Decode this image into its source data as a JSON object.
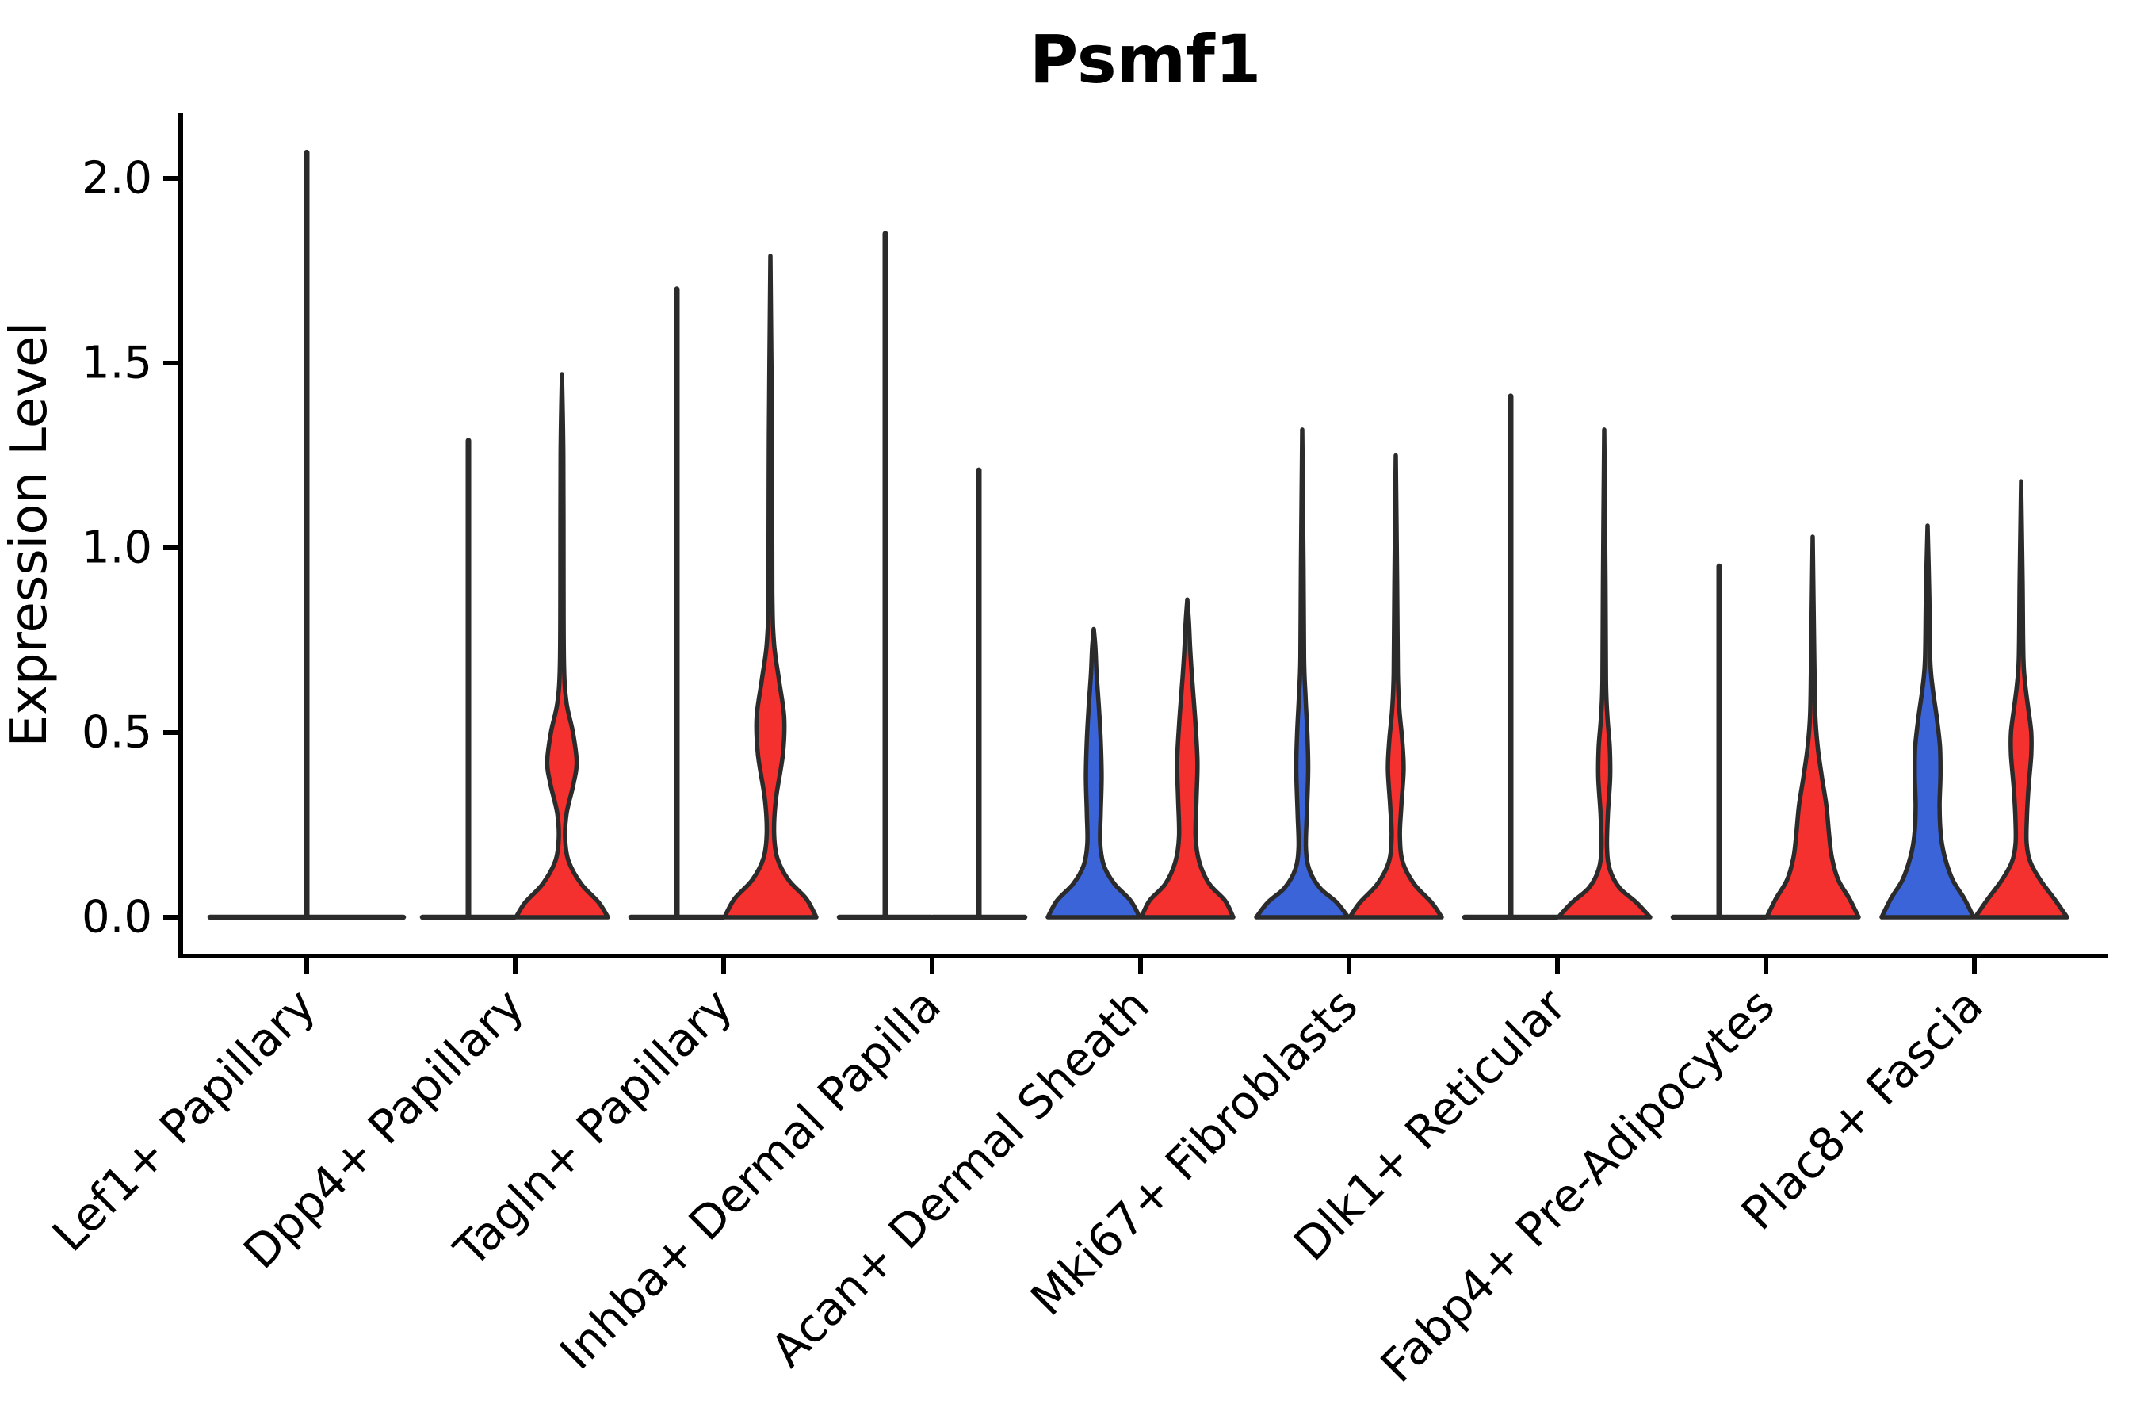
{
  "title": "Psmf1",
  "colors": {
    "blue": "#3B64D9",
    "red": "#F5312F",
    "outline": "#2B2B2B",
    "axis": "#000000"
  },
  "chart_data": {
    "type": "violin",
    "title": "Psmf1",
    "xlabel": "",
    "ylabel": "Expression Level",
    "ylim": [
      0,
      2.18
    ],
    "yticks": [
      0.0,
      0.5,
      1.0,
      1.5,
      2.0
    ],
    "ytick_labels": [
      "0.0",
      "0.5",
      "1.0",
      "1.5",
      "2.0"
    ],
    "grid": false,
    "legend": "none",
    "categories": [
      "Lef1+ Papillary",
      "Dpp4+ Papillary",
      "Tagln+ Papillary",
      "Inhba+ Dermal Papilla",
      "Acan+ Dermal Sheath",
      "Mki67+ Fibroblasts",
      "Dlk1+ Reticular",
      "Fabp4+ Pre-Adipocytes",
      "Plac8+ Fascia"
    ],
    "groups": [
      {
        "category": "Lef1+ Papillary",
        "violins": [
          {
            "position": "center",
            "kind": "spike",
            "fill": "none",
            "max": 2.07,
            "width": "wide"
          }
        ]
      },
      {
        "category": "Dpp4+ Papillary",
        "violins": [
          {
            "position": "left",
            "kind": "spike",
            "fill": "none",
            "max": 1.29
          },
          {
            "position": "right",
            "kind": "profile",
            "fill": "red",
            "max": 1.47,
            "profile": [
              [
                0,
                1
              ],
              [
                0.04,
                0.8
              ],
              [
                0.09,
                0.42
              ],
              [
                0.15,
                0.15
              ],
              [
                0.21,
                0.07
              ],
              [
                0.28,
                0.1
              ],
              [
                0.36,
                0.25
              ],
              [
                0.42,
                0.32
              ],
              [
                0.5,
                0.24
              ],
              [
                0.58,
                0.1
              ],
              [
                0.68,
                0.045
              ],
              [
                0.9,
                0.034
              ],
              [
                1.25,
                0.03
              ],
              [
                1.47,
                0
              ]
            ]
          }
        ]
      },
      {
        "category": "Tagln+ Papillary",
        "violins": [
          {
            "position": "left",
            "kind": "spike",
            "fill": "none",
            "max": 1.7
          },
          {
            "position": "right",
            "kind": "profile",
            "fill": "red",
            "max": 1.79,
            "profile": [
              [
                0,
                1
              ],
              [
                0.05,
                0.78
              ],
              [
                0.1,
                0.4
              ],
              [
                0.16,
                0.15
              ],
              [
                0.23,
                0.08
              ],
              [
                0.32,
                0.12
              ],
              [
                0.44,
                0.27
              ],
              [
                0.54,
                0.3
              ],
              [
                0.64,
                0.19
              ],
              [
                0.74,
                0.08
              ],
              [
                0.88,
                0.042
              ],
              [
                1.3,
                0.032
              ],
              [
                1.79,
                0
              ]
            ]
          }
        ]
      },
      {
        "category": "Inhba+ Dermal Papilla",
        "violins": [
          {
            "position": "left",
            "kind": "spike",
            "fill": "none",
            "max": 1.85
          },
          {
            "position": "right",
            "kind": "spike",
            "fill": "none",
            "max": 1.21
          }
        ]
      },
      {
        "category": "Acan+ Dermal Sheath",
        "violins": [
          {
            "position": "left",
            "kind": "profile",
            "fill": "blue",
            "max": 0.78,
            "profile": [
              [
                0,
                1
              ],
              [
                0.045,
                0.8
              ],
              [
                0.09,
                0.45
              ],
              [
                0.14,
                0.22
              ],
              [
                0.2,
                0.14
              ],
              [
                0.28,
                0.15
              ],
              [
                0.38,
                0.17
              ],
              [
                0.48,
                0.15
              ],
              [
                0.57,
                0.11
              ],
              [
                0.66,
                0.06
              ],
              [
                0.73,
                0.035
              ],
              [
                0.78,
                0
              ]
            ]
          },
          {
            "position": "right",
            "kind": "profile",
            "fill": "red",
            "max": 0.86,
            "profile": [
              [
                0,
                1
              ],
              [
                0.045,
                0.82
              ],
              [
                0.09,
                0.48
              ],
              [
                0.15,
                0.26
              ],
              [
                0.22,
                0.18
              ],
              [
                0.32,
                0.2
              ],
              [
                0.42,
                0.22
              ],
              [
                0.52,
                0.18
              ],
              [
                0.62,
                0.12
              ],
              [
                0.72,
                0.065
              ],
              [
                0.8,
                0.035
              ],
              [
                0.86,
                0
              ]
            ]
          }
        ]
      },
      {
        "category": "Mki67+ Fibroblasts",
        "violins": [
          {
            "position": "left",
            "kind": "profile",
            "fill": "blue",
            "max": 1.32,
            "profile": [
              [
                0,
                1
              ],
              [
                0.04,
                0.75
              ],
              [
                0.08,
                0.38
              ],
              [
                0.13,
                0.15
              ],
              [
                0.19,
                0.08
              ],
              [
                0.28,
                0.1
              ],
              [
                0.4,
                0.13
              ],
              [
                0.5,
                0.11
              ],
              [
                0.6,
                0.07
              ],
              [
                0.7,
                0.04
              ],
              [
                0.95,
                0.028
              ],
              [
                1.32,
                0
              ]
            ]
          },
          {
            "position": "right",
            "kind": "profile",
            "fill": "red",
            "max": 1.25,
            "profile": [
              [
                0,
                1
              ],
              [
                0.04,
                0.78
              ],
              [
                0.09,
                0.4
              ],
              [
                0.15,
                0.15
              ],
              [
                0.22,
                0.09
              ],
              [
                0.3,
                0.12
              ],
              [
                0.4,
                0.17
              ],
              [
                0.48,
                0.14
              ],
              [
                0.56,
                0.08
              ],
              [
                0.66,
                0.045
              ],
              [
                0.9,
                0.03
              ],
              [
                1.25,
                0
              ]
            ]
          }
        ]
      },
      {
        "category": "Dlk1+ Reticular",
        "violins": [
          {
            "position": "left",
            "kind": "spike",
            "fill": "none",
            "max": 1.41
          },
          {
            "position": "right",
            "kind": "profile",
            "fill": "red",
            "max": 1.32,
            "profile": [
              [
                0,
                1
              ],
              [
                0.04,
                0.7
              ],
              [
                0.08,
                0.33
              ],
              [
                0.13,
                0.12
              ],
              [
                0.19,
                0.06
              ],
              [
                0.28,
                0.08
              ],
              [
                0.38,
                0.13
              ],
              [
                0.46,
                0.12
              ],
              [
                0.54,
                0.07
              ],
              [
                0.64,
                0.038
              ],
              [
                0.9,
                0.028
              ],
              [
                1.32,
                0
              ]
            ]
          }
        ]
      },
      {
        "category": "Fabp4+ Pre-Adipocytes",
        "violins": [
          {
            "position": "left",
            "kind": "spike",
            "fill": "none",
            "max": 0.95
          },
          {
            "position": "right",
            "kind": "profile",
            "fill": "red",
            "max": 1.03,
            "profile": [
              [
                0,
                1
              ],
              [
                0.05,
                0.8
              ],
              [
                0.1,
                0.56
              ],
              [
                0.16,
                0.42
              ],
              [
                0.22,
                0.36
              ],
              [
                0.3,
                0.3
              ],
              [
                0.38,
                0.2
              ],
              [
                0.46,
                0.11
              ],
              [
                0.55,
                0.055
              ],
              [
                0.7,
                0.035
              ],
              [
                1.03,
                0
              ]
            ]
          }
        ]
      },
      {
        "category": "Plac8+ Fascia",
        "violins": [
          {
            "position": "left",
            "kind": "profile",
            "fill": "blue",
            "max": 1.06,
            "profile": [
              [
                0,
                1
              ],
              [
                0.05,
                0.8
              ],
              [
                0.1,
                0.55
              ],
              [
                0.16,
                0.38
              ],
              [
                0.22,
                0.29
              ],
              [
                0.3,
                0.26
              ],
              [
                0.38,
                0.28
              ],
              [
                0.46,
                0.27
              ],
              [
                0.54,
                0.2
              ],
              [
                0.62,
                0.11
              ],
              [
                0.7,
                0.055
              ],
              [
                0.88,
                0.035
              ],
              [
                1.06,
                0
              ]
            ]
          },
          {
            "position": "right",
            "kind": "profile",
            "fill": "red",
            "max": 1.18,
            "profile": [
              [
                0,
                1
              ],
              [
                0.05,
                0.72
              ],
              [
                0.1,
                0.42
              ],
              [
                0.15,
                0.2
              ],
              [
                0.2,
                0.12
              ],
              [
                0.27,
                0.125
              ],
              [
                0.35,
                0.16
              ],
              [
                0.44,
                0.22
              ],
              [
                0.5,
                0.22
              ],
              [
                0.57,
                0.15
              ],
              [
                0.63,
                0.09
              ],
              [
                0.7,
                0.05
              ],
              [
                0.9,
                0.032
              ],
              [
                1.18,
                0
              ]
            ]
          }
        ]
      }
    ]
  }
}
